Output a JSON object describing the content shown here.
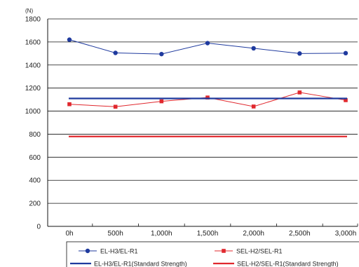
{
  "chart_data": {
    "type": "line",
    "title": "",
    "xlabel": "",
    "ylabel": "",
    "y_unit": "(N)",
    "categories": [
      "0h",
      "500h",
      "1,000h",
      "1,500h",
      "2,000h",
      "2,500h",
      "3,000h"
    ],
    "ylim": [
      0,
      1800
    ],
    "y_ticks": [
      0,
      200,
      400,
      600,
      800,
      1000,
      1200,
      1400,
      1600,
      1800
    ],
    "grid": "horizontal",
    "legend_position": "bottom",
    "series": [
      {
        "name": "EL-H3/EL-R1",
        "color": "#1f3a9e",
        "marker": "circle",
        "style": "line-marker",
        "values": [
          1620,
          1505,
          1495,
          1590,
          1545,
          1500,
          1503
        ]
      },
      {
        "name": "SEL-H2/SEL-R1",
        "color": "#e0282e",
        "marker": "square",
        "style": "line-marker",
        "values": [
          1060,
          1038,
          1085,
          1118,
          1040,
          1162,
          1095
        ]
      },
      {
        "name": "EL-H3/EL-R1(Standard Strength)",
        "color": "#1f3a9e",
        "marker": "none",
        "style": "bold-line",
        "values": [
          1110,
          1110,
          1110,
          1110,
          1110,
          1110,
          1110
        ]
      },
      {
        "name": "SEL-H2/SEL-R1(Standard Strength)",
        "color": "#e0282e",
        "marker": "none",
        "style": "bold-line",
        "values": [
          780,
          780,
          780,
          780,
          780,
          780,
          780
        ]
      }
    ]
  }
}
